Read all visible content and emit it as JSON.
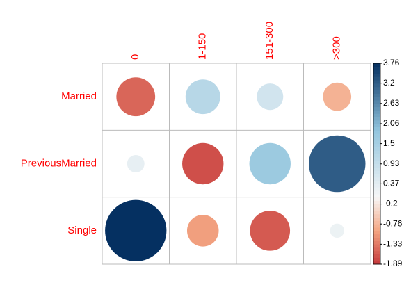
{
  "chart_data": {
    "type": "corrplot",
    "rows": [
      "Married",
      "PreviousMarried",
      "Single"
    ],
    "columns": [
      "0",
      "1-150",
      "151-300",
      ">300"
    ],
    "values": [
      [
        -1.5,
        1.2,
        0.7,
        -0.8
      ],
      [
        0.3,
        -1.7,
        1.7,
        3.2
      ],
      [
        3.76,
        -1.0,
        -1.6,
        0.2
      ]
    ],
    "clim": [
      -1.89,
      3.76
    ],
    "cticks": [
      3.76,
      3.2,
      2.63,
      2.06,
      1.5,
      0.93,
      0.37,
      -0.2,
      -0.76,
      -1.33,
      -1.89
    ],
    "colors": [
      "#c6393c",
      "#f4a582",
      "#f7f7f7",
      "#92c5de",
      "#053061"
    ]
  }
}
